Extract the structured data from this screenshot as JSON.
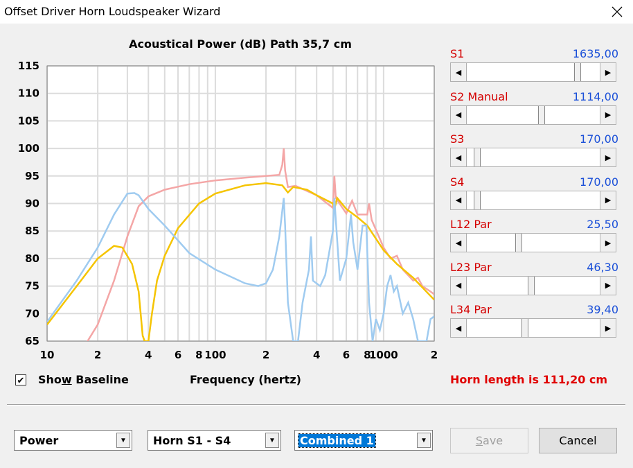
{
  "window": {
    "title": "Offset Driver Horn Loudspeaker Wizard"
  },
  "chart": {
    "title": "Acoustical Power (dB)    Path 35,7 cm"
  },
  "chart_data": {
    "type": "line",
    "title": "Acoustical Power (dB)    Path 35,7 cm",
    "xlabel": "Frequency (hertz)",
    "ylabel": "",
    "xscale": "log",
    "xlim": [
      10,
      2000
    ],
    "ylim": [
      65,
      115
    ],
    "grid": true,
    "y_ticks": [
      "115",
      "110",
      "105",
      "100",
      "95",
      "90",
      "85",
      "80",
      "75",
      "70",
      "65"
    ],
    "x_ticks": [
      {
        "label": "10",
        "value": 10
      },
      {
        "label": "2",
        "value": 20
      },
      {
        "label": "4",
        "value": 40
      },
      {
        "label": "6",
        "value": 60
      },
      {
        "label": "8",
        "value": 80
      },
      {
        "label": "100",
        "value": 100
      },
      {
        "label": "2",
        "value": 200
      },
      {
        "label": "4",
        "value": 400
      },
      {
        "label": "6",
        "value": 600
      },
      {
        "label": "8",
        "value": 800
      },
      {
        "label": "1000",
        "value": 1000
      },
      {
        "label": "2",
        "value": 2000
      }
    ],
    "series": [
      {
        "color": "#f4a6a6",
        "points": [
          [
            17,
            64.5
          ],
          [
            20,
            68
          ],
          [
            25,
            76
          ],
          [
            30,
            84
          ],
          [
            35,
            89.5
          ],
          [
            40,
            91.3
          ],
          [
            50,
            92.5
          ],
          [
            70,
            93.5
          ],
          [
            100,
            94.2
          ],
          [
            150,
            94.7
          ],
          [
            200,
            95
          ],
          [
            240,
            95.2
          ],
          [
            250,
            97
          ],
          [
            255,
            100
          ],
          [
            260,
            96
          ],
          [
            270,
            93
          ],
          [
            300,
            93.2
          ],
          [
            400,
            91.5
          ],
          [
            500,
            89.2
          ],
          [
            510,
            95
          ],
          [
            520,
            91
          ],
          [
            600,
            88.2
          ],
          [
            650,
            90.5
          ],
          [
            700,
            88
          ],
          [
            800,
            88
          ],
          [
            820,
            90
          ],
          [
            850,
            87
          ],
          [
            1000,
            82
          ],
          [
            1100,
            80
          ],
          [
            1200,
            80.5
          ],
          [
            1300,
            78
          ],
          [
            1500,
            76
          ],
          [
            1600,
            76.5
          ],
          [
            1700,
            75
          ],
          [
            1900,
            74
          ],
          [
            2000,
            73.5
          ]
        ]
      },
      {
        "color": "#f5c400",
        "points": [
          [
            10,
            68
          ],
          [
            15,
            75
          ],
          [
            20,
            80
          ],
          [
            25,
            82.3
          ],
          [
            28,
            82
          ],
          [
            32,
            79
          ],
          [
            35,
            74
          ],
          [
            37,
            66
          ],
          [
            38,
            65
          ],
          [
            40,
            65
          ],
          [
            42,
            70
          ],
          [
            45,
            76
          ],
          [
            50,
            80.5
          ],
          [
            60,
            85.5
          ],
          [
            80,
            90
          ],
          [
            100,
            91.8
          ],
          [
            150,
            93.3
          ],
          [
            200,
            93.7
          ],
          [
            250,
            93.3
          ],
          [
            270,
            92
          ],
          [
            290,
            93
          ],
          [
            350,
            92.5
          ],
          [
            400,
            91.5
          ],
          [
            500,
            90
          ],
          [
            510,
            89
          ],
          [
            530,
            91
          ],
          [
            600,
            89
          ],
          [
            700,
            87.5
          ],
          [
            800,
            86
          ],
          [
            1000,
            81.5
          ],
          [
            1200,
            79
          ],
          [
            1500,
            76.5
          ],
          [
            2000,
            72.5
          ]
        ]
      },
      {
        "color": "#9fcbf0",
        "points": [
          [
            10,
            68.5
          ],
          [
            15,
            76
          ],
          [
            20,
            82
          ],
          [
            25,
            88
          ],
          [
            30,
            91.8
          ],
          [
            33,
            91.9
          ],
          [
            35,
            91.5
          ],
          [
            40,
            89
          ],
          [
            50,
            86
          ],
          [
            70,
            81
          ],
          [
            100,
            78
          ],
          [
            150,
            75.5
          ],
          [
            180,
            75
          ],
          [
            200,
            75.5
          ],
          [
            220,
            78
          ],
          [
            240,
            84
          ],
          [
            255,
            91
          ],
          [
            260,
            86
          ],
          [
            270,
            72
          ],
          [
            290,
            65
          ],
          [
            310,
            65
          ],
          [
            330,
            72
          ],
          [
            360,
            78
          ],
          [
            370,
            84
          ],
          [
            380,
            76
          ],
          [
            420,
            75
          ],
          [
            450,
            77
          ],
          [
            500,
            85
          ],
          [
            510,
            91
          ],
          [
            520,
            87
          ],
          [
            550,
            76
          ],
          [
            600,
            80
          ],
          [
            640,
            88
          ],
          [
            660,
            83
          ],
          [
            700,
            78
          ],
          [
            750,
            86
          ],
          [
            790,
            86
          ],
          [
            820,
            72
          ],
          [
            860,
            65
          ],
          [
            900,
            69
          ],
          [
            950,
            67
          ],
          [
            1000,
            70
          ],
          [
            1050,
            75
          ],
          [
            1100,
            77
          ],
          [
            1150,
            74
          ],
          [
            1200,
            75
          ],
          [
            1300,
            70
          ],
          [
            1400,
            72
          ],
          [
            1500,
            69
          ],
          [
            1600,
            65
          ],
          [
            1800,
            65
          ],
          [
            1900,
            69
          ],
          [
            2000,
            69.5
          ]
        ]
      }
    ]
  },
  "baseline": {
    "label": "Show Baseline",
    "checked": true
  },
  "sliders": [
    {
      "name": "S1",
      "value": "1635,00",
      "fraction": 0.84
    },
    {
      "name": "S2  Manual",
      "value": "1114,00",
      "fraction": 0.56
    },
    {
      "name": "S3",
      "value": "170,00",
      "fraction": 0.06
    },
    {
      "name": "S4",
      "value": "170,00",
      "fraction": 0.06
    },
    {
      "name": "L12  Par",
      "value": "25,50",
      "fraction": 0.38
    },
    {
      "name": "L23  Par",
      "value": "46,30",
      "fraction": 0.48
    },
    {
      "name": "L34  Par",
      "value": "39,40",
      "fraction": 0.43
    }
  ],
  "status": {
    "horn_length": "Horn length is 111,20 cm"
  },
  "combos": [
    {
      "value": "Power"
    },
    {
      "value": "Horn S1 - S4"
    },
    {
      "value": "Combined 1"
    }
  ],
  "buttons": {
    "save": "Save",
    "cancel": "Cancel"
  }
}
